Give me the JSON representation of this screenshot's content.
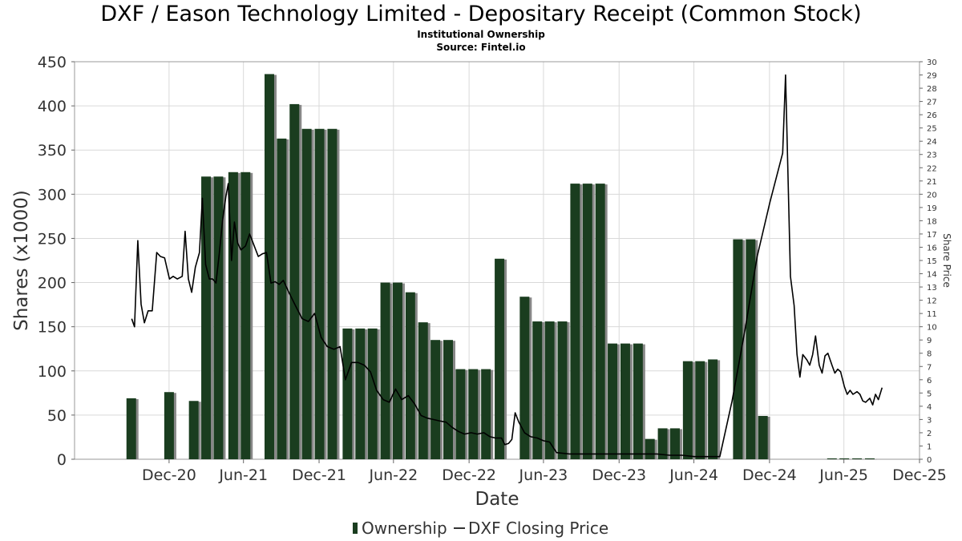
{
  "page": {
    "title": "DXF / Eason Technology Limited - Depositary Receipt (Common Stock)",
    "subtitle": "Institutional Ownership",
    "source": "Source: Fintel.io"
  },
  "chart_data": {
    "type": "bar",
    "xlabel": "Date",
    "ylabel": "Shares (x1000)",
    "y2label": "Share Price",
    "ylim": [
      0,
      450
    ],
    "y2lim": [
      0,
      30
    ],
    "y_ticks": [
      "0",
      "50",
      "100",
      "150",
      "200",
      "250",
      "300",
      "350",
      "400",
      "450"
    ],
    "y2_ticks": [
      "0",
      "1",
      "2",
      "3",
      "4",
      "5",
      "6",
      "7",
      "8",
      "9",
      "10",
      "11",
      "12",
      "13",
      "14",
      "15",
      "16",
      "17",
      "18",
      "19",
      "20",
      "21",
      "22",
      "23",
      "24",
      "25",
      "26",
      "27",
      "28",
      "29",
      "30"
    ],
    "x_ticks": [
      {
        "label": "Dec-20",
        "date": "2020-12-31"
      },
      {
        "label": "Jun-21",
        "date": "2021-06-30"
      },
      {
        "label": "Dec-21",
        "date": "2021-12-31"
      },
      {
        "label": "Jun-22",
        "date": "2022-06-30"
      },
      {
        "label": "Dec-22",
        "date": "2022-12-31"
      },
      {
        "label": "Jun-23",
        "date": "2023-06-30"
      },
      {
        "label": "Dec-23",
        "date": "2023-12-31"
      },
      {
        "label": "Jun-24",
        "date": "2024-06-30"
      },
      {
        "label": "Dec-24",
        "date": "2024-12-31"
      },
      {
        "label": "Jun-25",
        "date": "2025-06-30"
      },
      {
        "label": "Dec-25",
        "date": "2025-12-31"
      }
    ],
    "x_range": [
      "2020-05-15",
      "2025-12-31"
    ],
    "grid": true,
    "legend_position": "bottom-center",
    "colors": {
      "bar": "#1a3d1f",
      "bar_shadow": "#888888",
      "line": "#000000",
      "grid": "#d9d9d9"
    },
    "series": [
      {
        "name": "Ownership",
        "kind": "bar",
        "points": [
          {
            "date": "2020-09-30",
            "value": 69
          },
          {
            "date": "2020-12-31",
            "value": 76
          },
          {
            "date": "2021-03-01",
            "value": 66
          },
          {
            "date": "2021-03-31",
            "value": 320
          },
          {
            "date": "2021-04-30",
            "value": 320
          },
          {
            "date": "2021-06-05",
            "value": 325
          },
          {
            "date": "2021-07-05",
            "value": 325
          },
          {
            "date": "2021-09-01",
            "value": 436
          },
          {
            "date": "2021-10-01",
            "value": 363
          },
          {
            "date": "2021-11-01",
            "value": 402
          },
          {
            "date": "2021-12-01",
            "value": 374
          },
          {
            "date": "2022-01-01",
            "value": 374
          },
          {
            "date": "2022-02-01",
            "value": 374
          },
          {
            "date": "2022-03-10",
            "value": 148
          },
          {
            "date": "2022-04-10",
            "value": 148
          },
          {
            "date": "2022-05-10",
            "value": 148
          },
          {
            "date": "2022-06-10",
            "value": 200
          },
          {
            "date": "2022-07-10",
            "value": 200
          },
          {
            "date": "2022-08-10",
            "value": 189
          },
          {
            "date": "2022-09-10",
            "value": 155
          },
          {
            "date": "2022-10-10",
            "value": 135
          },
          {
            "date": "2022-11-10",
            "value": 135
          },
          {
            "date": "2022-12-10",
            "value": 102
          },
          {
            "date": "2023-01-10",
            "value": 102
          },
          {
            "date": "2023-02-10",
            "value": 102
          },
          {
            "date": "2023-03-15",
            "value": 227
          },
          {
            "date": "2023-05-15",
            "value": 184
          },
          {
            "date": "2023-06-15",
            "value": 156
          },
          {
            "date": "2023-07-15",
            "value": 156
          },
          {
            "date": "2023-08-15",
            "value": 156
          },
          {
            "date": "2023-09-15",
            "value": 312
          },
          {
            "date": "2023-10-15",
            "value": 312
          },
          {
            "date": "2023-11-15",
            "value": 312
          },
          {
            "date": "2023-12-15",
            "value": 131
          },
          {
            "date": "2024-01-15",
            "value": 131
          },
          {
            "date": "2024-02-15",
            "value": 131
          },
          {
            "date": "2024-03-15",
            "value": 23
          },
          {
            "date": "2024-04-15",
            "value": 35
          },
          {
            "date": "2024-05-15",
            "value": 35
          },
          {
            "date": "2024-06-15",
            "value": 111
          },
          {
            "date": "2024-07-15",
            "value": 111
          },
          {
            "date": "2024-08-15",
            "value": 113
          },
          {
            "date": "2024-10-15",
            "value": 249
          },
          {
            "date": "2024-11-15",
            "value": 249
          },
          {
            "date": "2024-12-15",
            "value": 49
          },
          {
            "date": "2025-06-01",
            "value": 1
          },
          {
            "date": "2025-07-01",
            "value": 1
          },
          {
            "date": "2025-08-01",
            "value": 1
          },
          {
            "date": "2025-09-01",
            "value": 1
          }
        ]
      },
      {
        "name": "DXF Closing Price",
        "kind": "line",
        "axis": "right",
        "points": [
          {
            "date": "2020-10-01",
            "value": 10.6
          },
          {
            "date": "2020-10-08",
            "value": 10.0
          },
          {
            "date": "2020-10-16",
            "value": 16.5
          },
          {
            "date": "2020-10-24",
            "value": 11.7
          },
          {
            "date": "2020-11-01",
            "value": 10.3
          },
          {
            "date": "2020-11-10",
            "value": 11.2
          },
          {
            "date": "2020-11-20",
            "value": 11.2
          },
          {
            "date": "2020-12-01",
            "value": 15.6
          },
          {
            "date": "2020-12-10",
            "value": 15.3
          },
          {
            "date": "2020-12-20",
            "value": 15.2
          },
          {
            "date": "2021-01-01",
            "value": 13.6
          },
          {
            "date": "2021-01-10",
            "value": 13.8
          },
          {
            "date": "2021-01-20",
            "value": 13.6
          },
          {
            "date": "2021-02-01",
            "value": 13.8
          },
          {
            "date": "2021-02-08",
            "value": 17.2
          },
          {
            "date": "2021-02-16",
            "value": 13.6
          },
          {
            "date": "2021-02-24",
            "value": 12.6
          },
          {
            "date": "2021-03-05",
            "value": 14.5
          },
          {
            "date": "2021-03-15",
            "value": 15.6
          },
          {
            "date": "2021-03-22",
            "value": 19.7
          },
          {
            "date": "2021-03-30",
            "value": 14.7
          },
          {
            "date": "2021-04-08",
            "value": 13.6
          },
          {
            "date": "2021-04-16",
            "value": 13.6
          },
          {
            "date": "2021-04-24",
            "value": 13.3
          },
          {
            "date": "2021-05-02",
            "value": 15.5
          },
          {
            "date": "2021-05-10",
            "value": 18.0
          },
          {
            "date": "2021-05-18",
            "value": 19.8
          },
          {
            "date": "2021-05-24",
            "value": 20.8
          },
          {
            "date": "2021-06-01",
            "value": 15.0
          },
          {
            "date": "2021-06-08",
            "value": 17.9
          },
          {
            "date": "2021-06-16",
            "value": 16.3
          },
          {
            "date": "2021-06-24",
            "value": 15.8
          },
          {
            "date": "2021-07-05",
            "value": 16.1
          },
          {
            "date": "2021-07-15",
            "value": 17.0
          },
          {
            "date": "2021-07-25",
            "value": 16.2
          },
          {
            "date": "2021-08-05",
            "value": 15.3
          },
          {
            "date": "2021-08-15",
            "value": 15.5
          },
          {
            "date": "2021-08-25",
            "value": 15.6
          },
          {
            "date": "2021-09-05",
            "value": 13.3
          },
          {
            "date": "2021-09-15",
            "value": 13.4
          },
          {
            "date": "2021-09-25",
            "value": 13.2
          },
          {
            "date": "2021-10-05",
            "value": 13.5
          },
          {
            "date": "2021-10-20",
            "value": 12.5
          },
          {
            "date": "2021-11-05",
            "value": 11.5
          },
          {
            "date": "2021-11-20",
            "value": 10.6
          },
          {
            "date": "2021-12-05",
            "value": 10.4
          },
          {
            "date": "2021-12-20",
            "value": 11.0
          },
          {
            "date": "2022-01-05",
            "value": 9.2
          },
          {
            "date": "2022-01-20",
            "value": 8.5
          },
          {
            "date": "2022-02-05",
            "value": 8.3
          },
          {
            "date": "2022-02-20",
            "value": 8.5
          },
          {
            "date": "2022-03-05",
            "value": 6.0
          },
          {
            "date": "2022-03-20",
            "value": 7.3
          },
          {
            "date": "2022-04-05",
            "value": 7.3
          },
          {
            "date": "2022-04-20",
            "value": 7.1
          },
          {
            "date": "2022-05-05",
            "value": 6.6
          },
          {
            "date": "2022-05-20",
            "value": 5.2
          },
          {
            "date": "2022-06-05",
            "value": 4.5
          },
          {
            "date": "2022-06-20",
            "value": 4.3
          },
          {
            "date": "2022-07-05",
            "value": 5.3
          },
          {
            "date": "2022-07-20",
            "value": 4.5
          },
          {
            "date": "2022-08-05",
            "value": 4.8
          },
          {
            "date": "2022-08-20",
            "value": 4.2
          },
          {
            "date": "2022-09-05",
            "value": 3.3
          },
          {
            "date": "2022-09-20",
            "value": 3.1
          },
          {
            "date": "2022-10-05",
            "value": 3.0
          },
          {
            "date": "2022-10-20",
            "value": 2.9
          },
          {
            "date": "2022-11-05",
            "value": 2.8
          },
          {
            "date": "2022-11-20",
            "value": 2.4
          },
          {
            "date": "2022-12-05",
            "value": 2.1
          },
          {
            "date": "2022-12-20",
            "value": 1.9
          },
          {
            "date": "2023-01-05",
            "value": 2.0
          },
          {
            "date": "2023-01-20",
            "value": 1.9
          },
          {
            "date": "2023-02-05",
            "value": 2.0
          },
          {
            "date": "2023-02-20",
            "value": 1.7
          },
          {
            "date": "2023-03-05",
            "value": 1.6
          },
          {
            "date": "2023-03-20",
            "value": 1.6
          },
          {
            "date": "2023-03-28",
            "value": 1.1
          },
          {
            "date": "2023-04-06",
            "value": 1.2
          },
          {
            "date": "2023-04-14",
            "value": 1.5
          },
          {
            "date": "2023-04-22",
            "value": 3.5
          },
          {
            "date": "2023-05-01",
            "value": 2.8
          },
          {
            "date": "2023-05-15",
            "value": 2.0
          },
          {
            "date": "2023-05-30",
            "value": 1.7
          },
          {
            "date": "2023-06-15",
            "value": 1.6
          },
          {
            "date": "2023-06-30",
            "value": 1.4
          },
          {
            "date": "2023-07-15",
            "value": 1.3
          },
          {
            "date": "2023-08-01",
            "value": 0.5
          },
          {
            "date": "2023-09-01",
            "value": 0.4
          },
          {
            "date": "2023-10-01",
            "value": 0.4
          },
          {
            "date": "2023-11-01",
            "value": 0.4
          },
          {
            "date": "2023-12-01",
            "value": 0.4
          },
          {
            "date": "2024-01-01",
            "value": 0.4
          },
          {
            "date": "2024-02-01",
            "value": 0.4
          },
          {
            "date": "2024-03-01",
            "value": 0.4
          },
          {
            "date": "2024-04-01",
            "value": 0.4
          },
          {
            "date": "2024-05-01",
            "value": 0.3
          },
          {
            "date": "2024-06-01",
            "value": 0.3
          },
          {
            "date": "2024-07-01",
            "value": 0.2
          },
          {
            "date": "2024-08-01",
            "value": 0.2
          },
          {
            "date": "2024-09-01",
            "value": 0.2
          },
          {
            "date": "2024-10-01",
            "value": 4.4
          },
          {
            "date": "2024-11-01",
            "value": 9.7
          },
          {
            "date": "2024-12-01",
            "value": 15.3
          },
          {
            "date": "2025-01-01",
            "value": 19.4
          },
          {
            "date": "2025-02-01",
            "value": 23.1
          },
          {
            "date": "2025-02-08",
            "value": 29.0
          },
          {
            "date": "2025-02-20",
            "value": 13.8
          },
          {
            "date": "2025-03-01",
            "value": 11.6
          },
          {
            "date": "2025-03-08",
            "value": 7.9
          },
          {
            "date": "2025-03-15",
            "value": 6.2
          },
          {
            "date": "2025-03-22",
            "value": 7.9
          },
          {
            "date": "2025-04-01",
            "value": 7.5
          },
          {
            "date": "2025-04-08",
            "value": 7.1
          },
          {
            "date": "2025-04-15",
            "value": 7.9
          },
          {
            "date": "2025-04-22",
            "value": 9.3
          },
          {
            "date": "2025-05-01",
            "value": 7.1
          },
          {
            "date": "2025-05-08",
            "value": 6.5
          },
          {
            "date": "2025-05-15",
            "value": 7.8
          },
          {
            "date": "2025-05-22",
            "value": 8.0
          },
          {
            "date": "2025-06-01",
            "value": 7.1
          },
          {
            "date": "2025-06-08",
            "value": 6.5
          },
          {
            "date": "2025-06-15",
            "value": 6.8
          },
          {
            "date": "2025-06-22",
            "value": 6.6
          },
          {
            "date": "2025-07-01",
            "value": 5.5
          },
          {
            "date": "2025-07-08",
            "value": 4.9
          },
          {
            "date": "2025-07-15",
            "value": 5.2
          },
          {
            "date": "2025-07-22",
            "value": 4.9
          },
          {
            "date": "2025-08-01",
            "value": 5.1
          },
          {
            "date": "2025-08-08",
            "value": 4.9
          },
          {
            "date": "2025-08-15",
            "value": 4.4
          },
          {
            "date": "2025-08-22",
            "value": 4.3
          },
          {
            "date": "2025-09-01",
            "value": 4.6
          },
          {
            "date": "2025-09-08",
            "value": 4.1
          },
          {
            "date": "2025-09-15",
            "value": 4.9
          },
          {
            "date": "2025-09-22",
            "value": 4.5
          },
          {
            "date": "2025-10-01",
            "value": 5.4
          }
        ]
      }
    ],
    "legend": [
      {
        "label": "Ownership",
        "kind": "bar"
      },
      {
        "label": "DXF Closing Price",
        "kind": "line"
      }
    ]
  }
}
